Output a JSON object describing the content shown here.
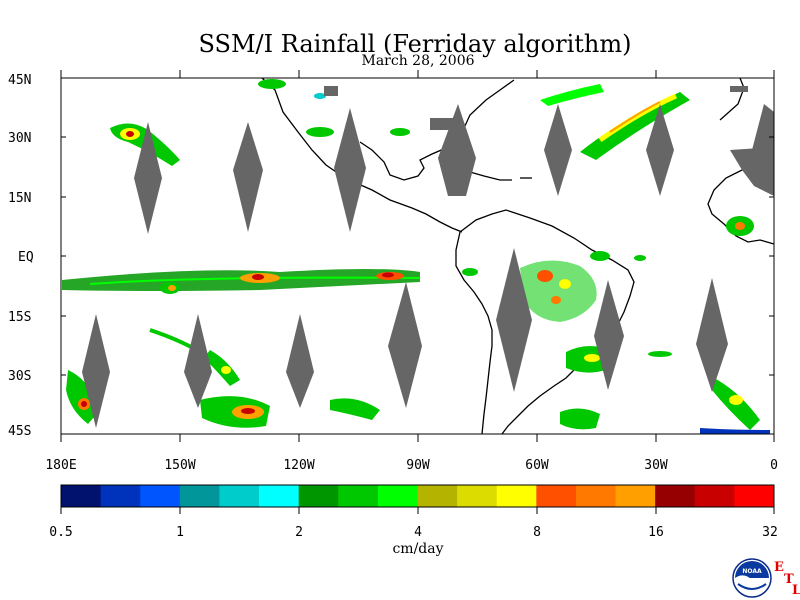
{
  "header": {
    "title": "SSM/I Rainfall (Ferriday algorithm)",
    "date": "March 28, 2006"
  },
  "map": {
    "lat_labels": [
      "45N",
      "30N",
      "15N",
      "EQ",
      "15S",
      "30S",
      "45S"
    ],
    "lon_labels": [
      "180E",
      "150W",
      "120W",
      "90W",
      "60W",
      "30W",
      "0"
    ],
    "lat_range": [
      -45,
      45
    ],
    "lon_range": [
      -180,
      0
    ],
    "colors": {
      "no_data": "#666666",
      "land_outline": "#000000",
      "ocean": "#ffffff"
    }
  },
  "colorbar": {
    "tick_labels": [
      "0.5",
      "1",
      "2",
      "4",
      "8",
      "16",
      "32"
    ],
    "unit": "cm/day",
    "colors": [
      "#00116e",
      "#0033bb",
      "#0055ff",
      "#00969a",
      "#00cccc",
      "#00ffff",
      "#009600",
      "#00c800",
      "#00ff00",
      "#b4b400",
      "#dcdc00",
      "#ffff00",
      "#ff5000",
      "#ff7800",
      "#ffa000",
      "#960000",
      "#c80000",
      "#ff0000"
    ]
  },
  "logo": {
    "text": "NOAA",
    "etl": [
      "E",
      "T",
      "L"
    ]
  }
}
